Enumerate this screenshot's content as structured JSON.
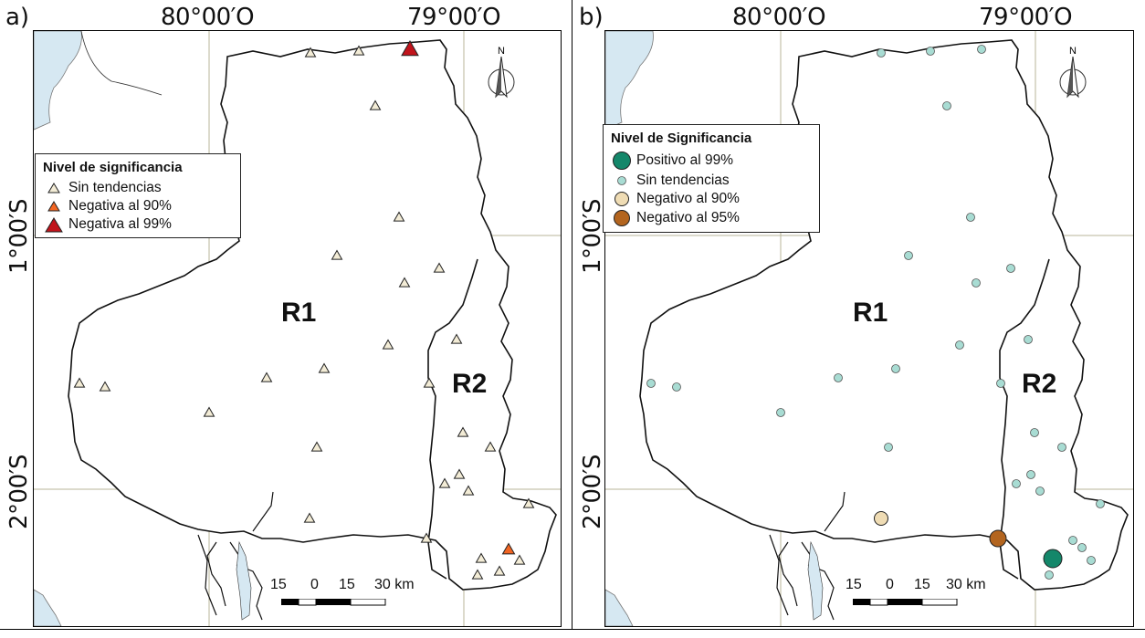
{
  "panels": [
    {
      "label": "a)",
      "lon_labels": [
        "80°00′O",
        "79°00′O"
      ],
      "lat_labels": [
        "1°00′S",
        "2°00′S"
      ],
      "legend": {
        "title": "Nivel de significancia",
        "items": [
          "Sin tendencias",
          "Negativa al 90%",
          "Negativa al 99%"
        ]
      },
      "regions": [
        "R1",
        "R2"
      ],
      "scale": {
        "labels": [
          "15",
          "0",
          "15",
          "30 km"
        ]
      },
      "north": "N"
    },
    {
      "label": "b)",
      "lon_labels": [
        "80°00′O",
        "79°00′O"
      ],
      "lat_labels": [
        "1°00′S",
        "2°00′S"
      ],
      "legend": {
        "title": "Nivel de Significancia",
        "items": [
          "Positivo al 99%",
          "Sin tendencias",
          "Negativo al 90%",
          "Negativo al 95%"
        ]
      },
      "regions": [
        "R1",
        "R2"
      ],
      "scale": {
        "labels": [
          "15",
          "0",
          "15",
          "30 km"
        ]
      },
      "north": "N"
    }
  ],
  "colors": {
    "sea": "#d6e8f2",
    "graticule": "#b9b59a",
    "no_trend_a": "#f3ecd6",
    "neg90_a": "#f26522",
    "neg99_a": "#c1141c",
    "pos99_b": "#14876a",
    "no_trend_b": "#a8dcd3",
    "neg90_b": "#efdcb4",
    "neg95_b": "#b3651f"
  }
}
